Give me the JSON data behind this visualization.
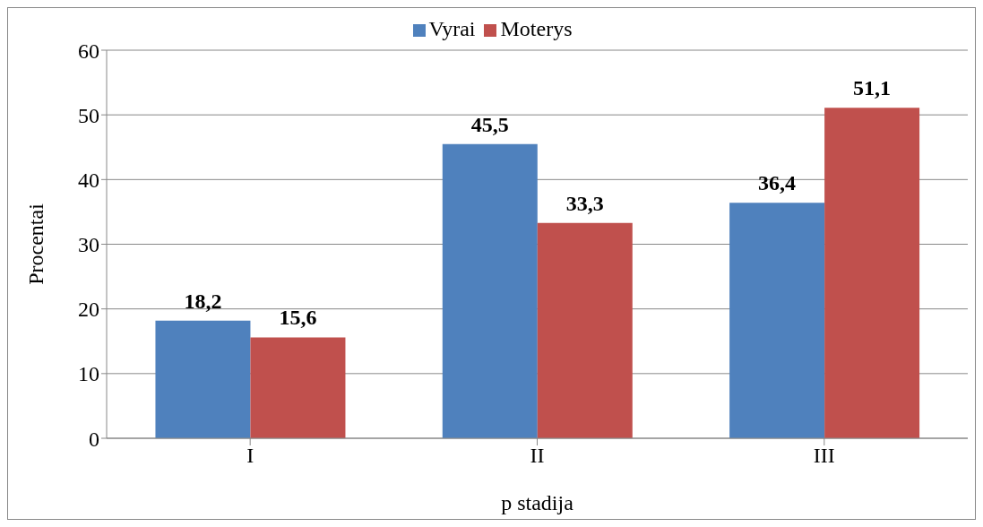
{
  "chart_data": {
    "type": "bar",
    "xlabel": "p stadija",
    "ylabel": "Procentai",
    "categories": [
      "I",
      "II",
      "III"
    ],
    "series": [
      {
        "name": "Vyrai",
        "color": "#4f81bd",
        "values": [
          18.2,
          45.5,
          36.4
        ],
        "value_labels": [
          "18,2",
          "45,5",
          "36,4"
        ]
      },
      {
        "name": "Moterys",
        "color": "#c0504d",
        "values": [
          15.6,
          33.3,
          51.1
        ],
        "value_labels": [
          "15,6",
          "33,3",
          "51,1"
        ]
      }
    ],
    "ylim": [
      0,
      60
    ],
    "yticks": [
      0,
      10,
      20,
      30,
      40,
      50,
      60
    ],
    "grid": "y",
    "legend": "top"
  }
}
